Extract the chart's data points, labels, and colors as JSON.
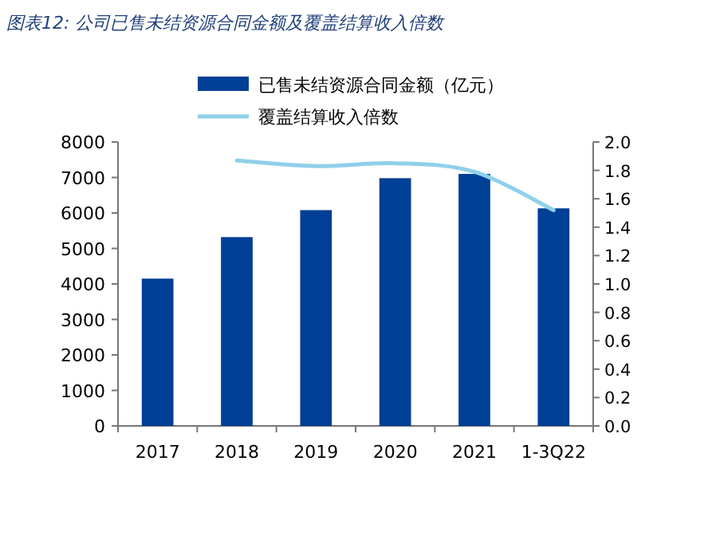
{
  "chart_data": {
    "type": "bar",
    "title": "图表12:   公司已售未结资源合同金额及覆盖结算收入倍数",
    "categories": [
      "2017",
      "2018",
      "2019",
      "2020",
      "2021",
      "1-3Q22"
    ],
    "series": [
      {
        "name": "已售未结资源合同金额（亿元）",
        "color": "#003f96",
        "values": [
          4150,
          5320,
          6080,
          6980,
          7100,
          6130
        ]
      },
      {
        "name": "覆盖结算收入倍数",
        "type": "line",
        "axis": "y2",
        "color": "#8fd0ea",
        "values": [
          null,
          1.87,
          1.83,
          1.85,
          1.79,
          1.52
        ]
      }
    ],
    "ylim": [
      0,
      8000
    ],
    "yticks": [
      0,
      1000,
      2000,
      3000,
      4000,
      5000,
      6000,
      7000,
      8000
    ],
    "y2lim": [
      0,
      2.0
    ],
    "y2ticks": [
      {
        "value": 0,
        "label": "0.0"
      },
      {
        "value": 0.2,
        "label": "0.2"
      },
      {
        "value": 0.4,
        "label": "0.4"
      },
      {
        "value": 0.6,
        "label": "0.6"
      },
      {
        "value": 0.8,
        "label": "0.8"
      },
      {
        "value": 1.0,
        "label": "1.0"
      },
      {
        "value": 1.2,
        "label": "1.2"
      },
      {
        "value": 1.4,
        "label": "1.4"
      },
      {
        "value": 1.6,
        "label": "1.6"
      },
      {
        "value": 1.8,
        "label": "1.8"
      },
      {
        "value": 2.0,
        "label": "2.0"
      }
    ],
    "legend": "top",
    "grid": false
  }
}
